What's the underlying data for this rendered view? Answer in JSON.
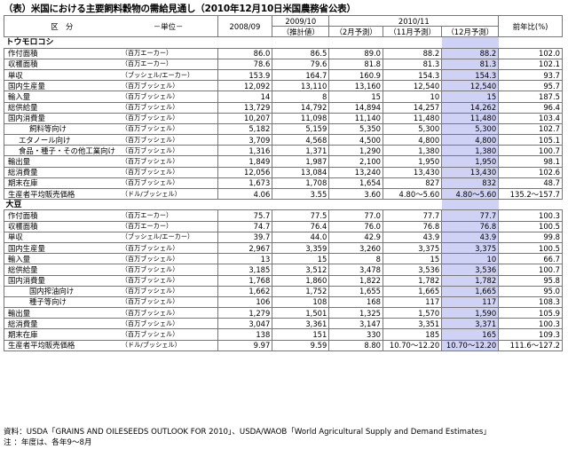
{
  "title": "（表）米国における主要飼料穀物の需給見通し（2010年12月10日米国農務省公表）",
  "header": {
    "col_label": "区　分",
    "col_unit": "－単位－",
    "y2008": "2008/09",
    "y2009": "2009/10",
    "y2009_sub": "（推計値）",
    "y2010": "2010/11",
    "feb": "（2月予測）",
    "nov": "（11月予測）",
    "dec": "（12月予測）",
    "yoy": "前年比(%)"
  },
  "sections": [
    {
      "name": "トウモロコシ",
      "rows": [
        {
          "label": "作付面積",
          "unit": "（百万エーカー）",
          "indent": 0,
          "v": [
            "86.0",
            "86.5",
            "89.0",
            "88.2",
            "88.2",
            "102.0"
          ]
        },
        {
          "label": "収穫面積",
          "unit": "（百万エーカー）",
          "indent": 0,
          "v": [
            "78.6",
            "79.6",
            "81.8",
            "81.3",
            "81.3",
            "102.1"
          ]
        },
        {
          "label": "単収",
          "unit": "（ブッシェル/エーカー）",
          "indent": 0,
          "v": [
            "153.9",
            "164.7",
            "160.9",
            "154.3",
            "154.3",
            "93.7"
          ]
        },
        {
          "label": "国内生産量",
          "unit": "（百万ブッシェル）",
          "indent": 0,
          "v": [
            "12,092",
            "13,110",
            "13,160",
            "12,540",
            "12,540",
            "95.7"
          ]
        },
        {
          "label": "輸入量",
          "unit": "（百万ブッシェル）",
          "indent": 0,
          "v": [
            "14",
            "8",
            "15",
            "10",
            "15",
            "187.5"
          ]
        },
        {
          "label": "総供給量",
          "unit": "（百万ブッシェル）",
          "indent": 0,
          "v": [
            "13,729",
            "14,792",
            "14,894",
            "14,257",
            "14,262",
            "96.4"
          ]
        },
        {
          "label": "国内消費量",
          "unit": "（百万ブッシェル）",
          "indent": 0,
          "v": [
            "10,207",
            "11,098",
            "11,140",
            "11,480",
            "11,480",
            "103.4"
          ]
        },
        {
          "label": "飼料等向け",
          "unit": "（百万ブッシェル）",
          "indent": 2,
          "v": [
            "5,182",
            "5,159",
            "5,350",
            "5,300",
            "5,300",
            "102.7"
          ]
        },
        {
          "label": "エタノール向け",
          "unit": "（百万ブッシェル）",
          "indent": 1,
          "v": [
            "3,709",
            "4,568",
            "4,500",
            "4,800",
            "4,800",
            "105.1"
          ]
        },
        {
          "label": "食品・種子・その他工業向け",
          "unit": "（百万ブッシェル）",
          "indent": 1,
          "v": [
            "1,316",
            "1,371",
            "1,290",
            "1,380",
            "1,380",
            "100.7"
          ]
        },
        {
          "label": "輸出量",
          "unit": "（百万ブッシェル）",
          "indent": 0,
          "v": [
            "1,849",
            "1,987",
            "2,100",
            "1,950",
            "1,950",
            "98.1"
          ]
        },
        {
          "label": "総消費量",
          "unit": "（百万ブッシェル）",
          "indent": 0,
          "v": [
            "12,056",
            "13,084",
            "13,240",
            "13,430",
            "13,430",
            "102.6"
          ]
        },
        {
          "label": "期末在庫",
          "unit": "（百万ブッシェル）",
          "indent": 0,
          "v": [
            "1,673",
            "1,708",
            "1,654",
            "827",
            "832",
            "48.7"
          ]
        },
        {
          "label": "生産者平均販売価格",
          "unit": "（ドル/ブッシェル）",
          "indent": 0,
          "v": [
            "4.06",
            "3.55",
            "3.60",
            "4.80～5.60",
            "4.80～5.60",
            "135.2～157.7"
          ]
        }
      ]
    },
    {
      "name": "大豆",
      "rows": [
        {
          "label": "作付面積",
          "unit": "（百万エーカー）",
          "indent": 0,
          "v": [
            "75.7",
            "77.5",
            "77.0",
            "77.7",
            "77.7",
            "100.3"
          ]
        },
        {
          "label": "収穫面積",
          "unit": "（百万エーカー）",
          "indent": 0,
          "v": [
            "74.7",
            "76.4",
            "76.0",
            "76.8",
            "76.8",
            "100.5"
          ]
        },
        {
          "label": "単収",
          "unit": "（ブッシェル/エーカー）",
          "indent": 0,
          "v": [
            "39.7",
            "44.0",
            "42.9",
            "43.9",
            "43.9",
            "99.8"
          ]
        },
        {
          "label": "国内生産量",
          "unit": "（百万ブッシェル）",
          "indent": 0,
          "v": [
            "2,967",
            "3,359",
            "3,260",
            "3,375",
            "3,375",
            "100.5"
          ]
        },
        {
          "label": "輸入量",
          "unit": "（百万ブッシェル）",
          "indent": 0,
          "v": [
            "13",
            "15",
            "8",
            "15",
            "10",
            "66.7"
          ]
        },
        {
          "label": "総供給量",
          "unit": "（百万ブッシェル）",
          "indent": 0,
          "v": [
            "3,185",
            "3,512",
            "3,478",
            "3,536",
            "3,536",
            "100.7"
          ]
        },
        {
          "label": "国内消費量",
          "unit": "（百万ブッシェル）",
          "indent": 0,
          "v": [
            "1,768",
            "1,860",
            "1,822",
            "1,782",
            "1,782",
            "95.8"
          ]
        },
        {
          "label": "国内搾油向け",
          "unit": "（百万ブッシェル）",
          "indent": 2,
          "v": [
            "1,662",
            "1,752",
            "1,655",
            "1,665",
            "1,665",
            "95.0"
          ]
        },
        {
          "label": "種子等向け",
          "unit": "（百万ブッシェル）",
          "indent": 2,
          "v": [
            "106",
            "108",
            "168",
            "117",
            "117",
            "108.3"
          ]
        },
        {
          "label": "輸出量",
          "unit": "（百万ブッシェル）",
          "indent": 0,
          "v": [
            "1,279",
            "1,501",
            "1,325",
            "1,570",
            "1,590",
            "105.9"
          ]
        },
        {
          "label": "総消費量",
          "unit": "（百万ブッシェル）",
          "indent": 0,
          "v": [
            "3,047",
            "3,361",
            "3,147",
            "3,351",
            "3,371",
            "100.3"
          ]
        },
        {
          "label": "期末在庫",
          "unit": "（百万ブッシェル）",
          "indent": 0,
          "v": [
            "138",
            "151",
            "330",
            "185",
            "165",
            "109.3"
          ]
        },
        {
          "label": "生産者平均販売価格",
          "unit": "（ドル/ブッシェル）",
          "indent": 0,
          "v": [
            "9.97",
            "9.59",
            "8.80",
            "10.70～12.20",
            "10.70～12.20",
            "111.6～127.2"
          ]
        }
      ]
    }
  ],
  "footer": {
    "source": "資料：USDA「GRAINS AND OILESEEDS OUTLOOK FOR 2010」、USDA/WAOB「World Agricultural Supply and Demand Estimates」",
    "note": "注 ：年度は、各年9～8月"
  }
}
